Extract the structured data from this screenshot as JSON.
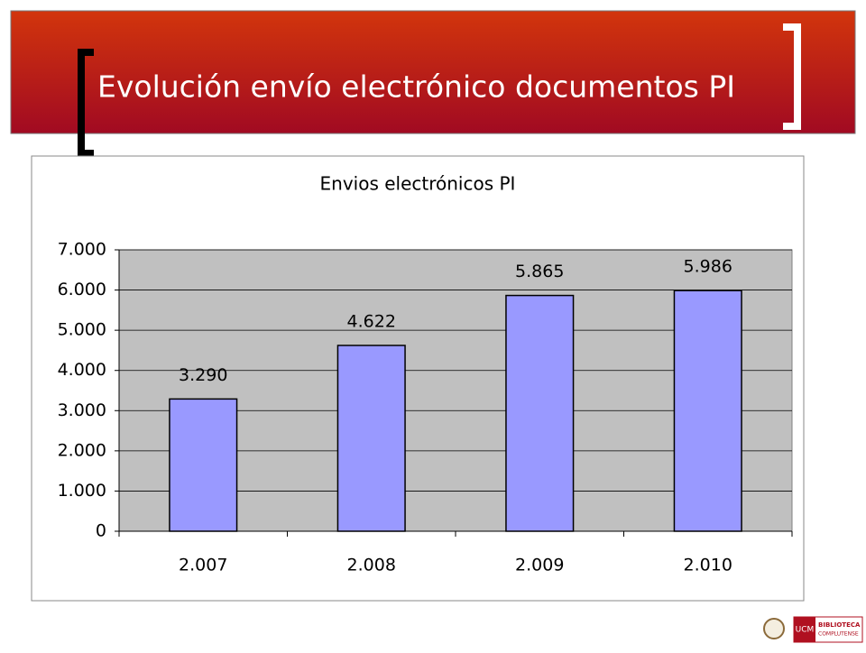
{
  "header": {
    "title": "Evolución envío electrónico documentos PI"
  },
  "chart_data": {
    "type": "bar",
    "title": "Envios electrónicos PI",
    "categories": [
      "2.007",
      "2.008",
      "2.009",
      "2.010"
    ],
    "values": [
      3290,
      4622,
      5865,
      5986
    ],
    "value_labels": [
      "3.290",
      "4.622",
      "5.865",
      "5.986"
    ],
    "color": "#9999ff",
    "ylim": [
      0,
      7000
    ],
    "yticks": [
      0,
      {
        "value": 1000,
        "label": "1.000"
      },
      {
        "value": 2000,
        "label": "2.000"
      },
      {
        "value": 3000,
        "label": "3.000"
      },
      {
        "value": 4000,
        "label": "4.000"
      },
      {
        "value": 5000,
        "label": "5.000"
      },
      {
        "value": 6000,
        "label": "6.000"
      },
      {
        "value": 7000,
        "label": "7.000"
      }
    ],
    "grid": true
  },
  "footer": {
    "logo_mark": "UCM",
    "logo_line1": "BIBLIOTECA",
    "logo_line2": "COMPLUTENSE"
  }
}
